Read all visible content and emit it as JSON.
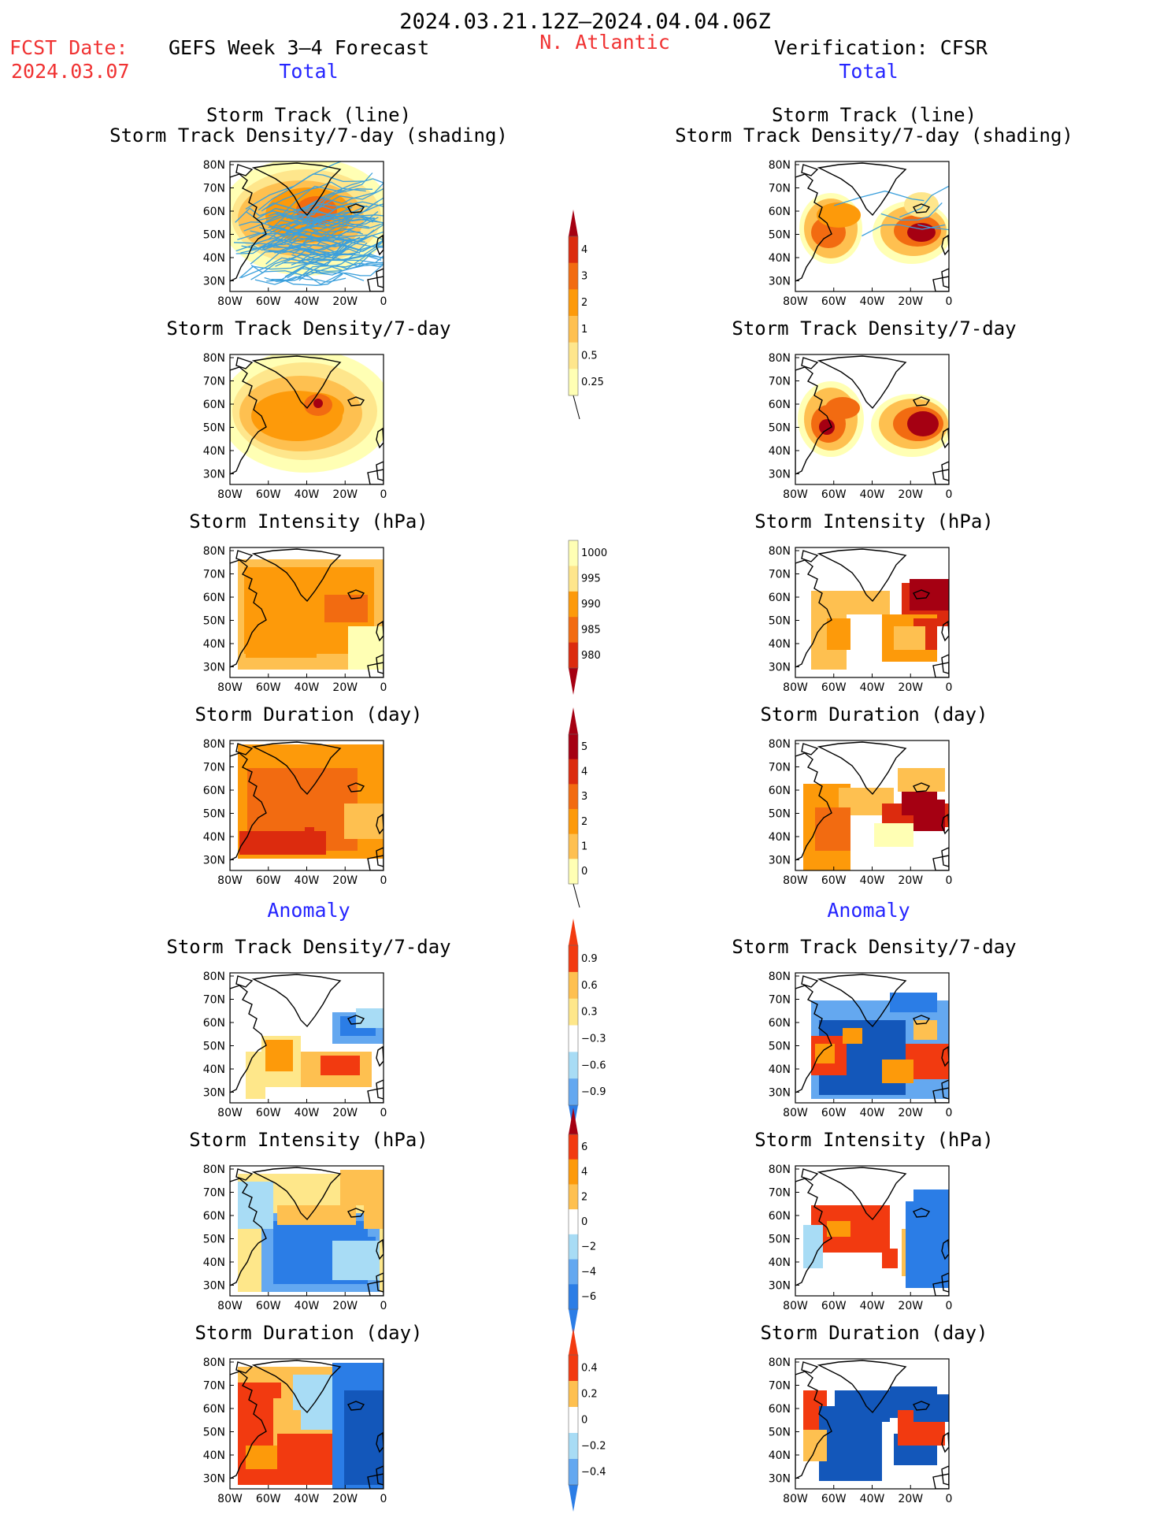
{
  "header": {
    "period": "2024.03.21.12Z–2024.04.04.06Z",
    "fcst_label": "FCST Date:",
    "fcst_date": "2024.03.07",
    "model_title": "GEFS Week 3–4 Forecast",
    "region": "N. Atlantic",
    "verification": "Verification: CFSR"
  },
  "sections": {
    "total_left": "Total",
    "total_right": "Total",
    "anomaly_left": "Anomaly",
    "anomaly_right": "Anomaly"
  },
  "panel_titles": {
    "track_line": "Storm Track (line)",
    "track_shading": "Storm Track Density/7-day (shading)",
    "density": "Storm Track Density/7-day",
    "intensity": "Storm Intensity (hPa)",
    "duration": "Storm Duration (day)"
  },
  "axes": {
    "lat_ticks": [
      "80N",
      "70N",
      "60N",
      "50N",
      "40N",
      "30N"
    ],
    "lon_ticks": [
      "80W",
      "60W",
      "40W",
      "20W",
      "0"
    ]
  },
  "colorbars": {
    "density_total": [
      "4",
      "3",
      "2",
      "1",
      "0.5",
      "0.25"
    ],
    "intensity_total": [
      "1000",
      "995",
      "990",
      "985",
      "980"
    ],
    "duration_total": [
      "5",
      "4",
      "3",
      "2",
      "1",
      "0"
    ],
    "density_anom": [
      "0.9",
      "0.6",
      "0.3",
      "−0.3",
      "−0.6",
      "−0.9"
    ],
    "intensity_anom": [
      "6",
      "4",
      "2",
      "0",
      "−2",
      "−4",
      "−6"
    ],
    "duration_anom": [
      "0.4",
      "0.2",
      "0",
      "−0.2",
      "−0.4"
    ]
  },
  "colors": {
    "warm": [
      "#ffffb4",
      "#fee68c",
      "#fec050",
      "#fd9a0a",
      "#f26b11",
      "#dc2b0e",
      "#a50012"
    ],
    "anom": [
      "#1357ba",
      "#2b7de6",
      "#64a8f0",
      "#a8dcf5",
      "#ffffff",
      "#fee78a",
      "#fec050",
      "#fd9a0a",
      "#f23a10"
    ],
    "track": "#3ca0dc"
  }
}
